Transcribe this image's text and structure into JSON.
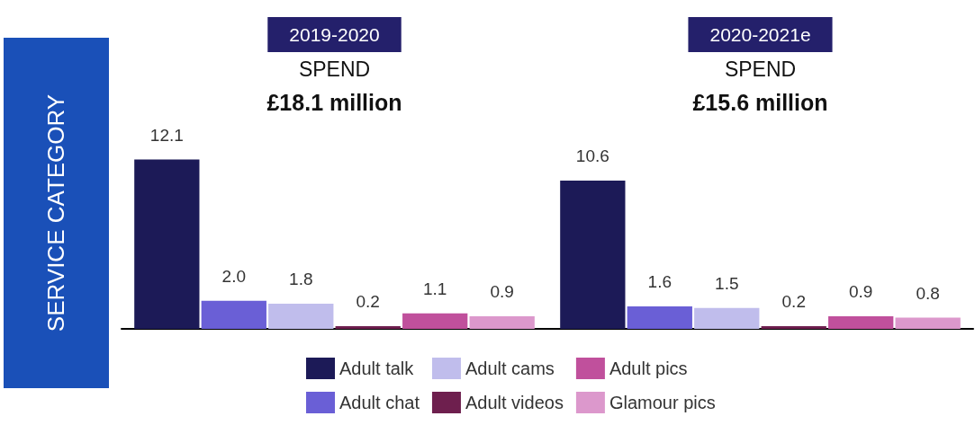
{
  "chart_data": {
    "type": "bar",
    "ylabel": "SERVICE CATEGORY",
    "categories": [
      "2019-2020",
      "2020-2021e"
    ],
    "series": [
      {
        "name": "Adult talk",
        "color": "#1c1a57",
        "values": [
          12.1,
          10.6
        ],
        "value_labels": [
          "12.1",
          "10.6"
        ]
      },
      {
        "name": "Adult chat",
        "color": "#6a5fd6",
        "values": [
          2.0,
          1.6
        ],
        "value_labels": [
          "2.0",
          "1.6"
        ]
      },
      {
        "name": "Adult cams",
        "color": "#c0bdec",
        "values": [
          1.8,
          1.5
        ],
        "value_labels": [
          "1.8",
          "1.5"
        ]
      },
      {
        "name": "Adult videos",
        "color": "#6e1f4e",
        "values": [
          0.2,
          0.2
        ],
        "value_labels": [
          "0.2",
          "0.2"
        ]
      },
      {
        "name": "Adult pics",
        "color": "#c0509c",
        "values": [
          1.1,
          0.9
        ],
        "value_labels": [
          "1.1",
          "0.9"
        ]
      },
      {
        "name": "Glamour pics",
        "color": "#dc98cc",
        "values": [
          0.9,
          0.8
        ],
        "value_labels": [
          "0.9",
          "0.8"
        ]
      }
    ],
    "annotations": [
      "SPEND",
      "£18.1 million",
      "SPEND",
      "£15.6 million"
    ],
    "legend": "bottom"
  }
}
